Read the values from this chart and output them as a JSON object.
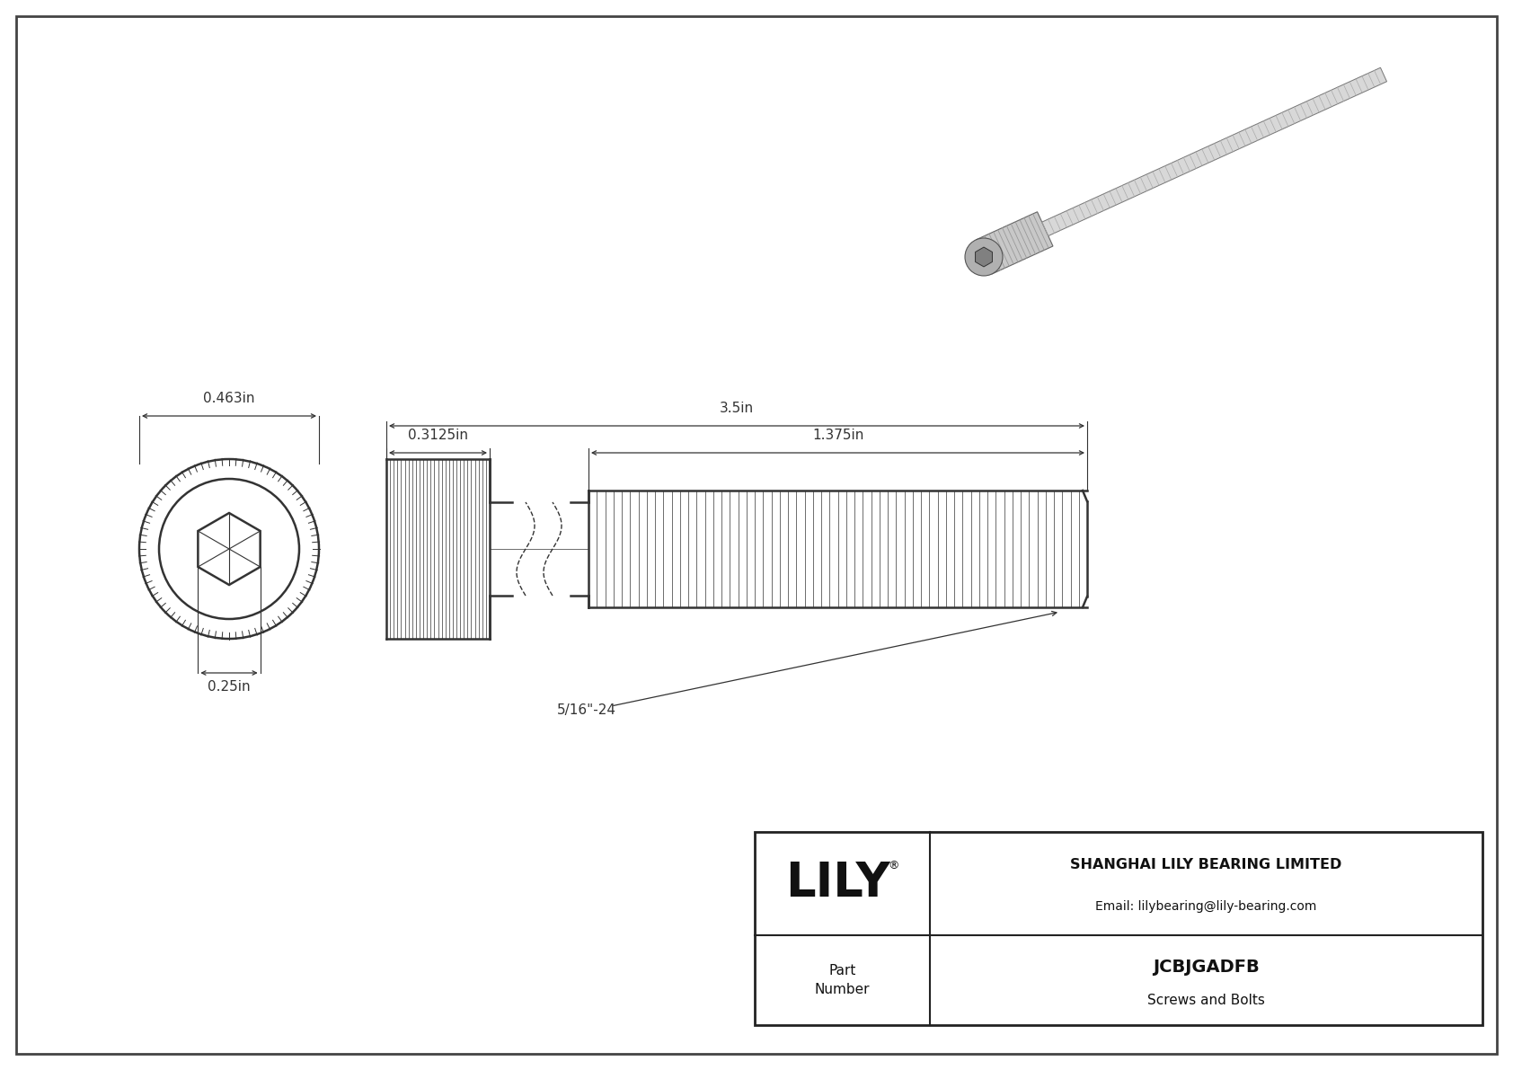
{
  "bg_color": "#ffffff",
  "border_color": "#555555",
  "drawing_color": "#333333",
  "title": "JCBJGADFB",
  "subtitle": "Screws and Bolts",
  "company": "SHANGHAI LILY BEARING LIMITED",
  "email": "Email: lilybearing@lily-bearing.com",
  "part_label": "Part\nNumber",
  "logo_text": "LILY",
  "logo_reg": "®",
  "dim_head_diameter": "0.463in",
  "dim_head_height": "0.25in",
  "dim_total_length": "3.5in",
  "dim_head_length": "0.3125in",
  "dim_thread_length": "1.375in",
  "dim_thread_label": "5/16\"-24",
  "fig_width": 16.84,
  "fig_height": 11.91
}
